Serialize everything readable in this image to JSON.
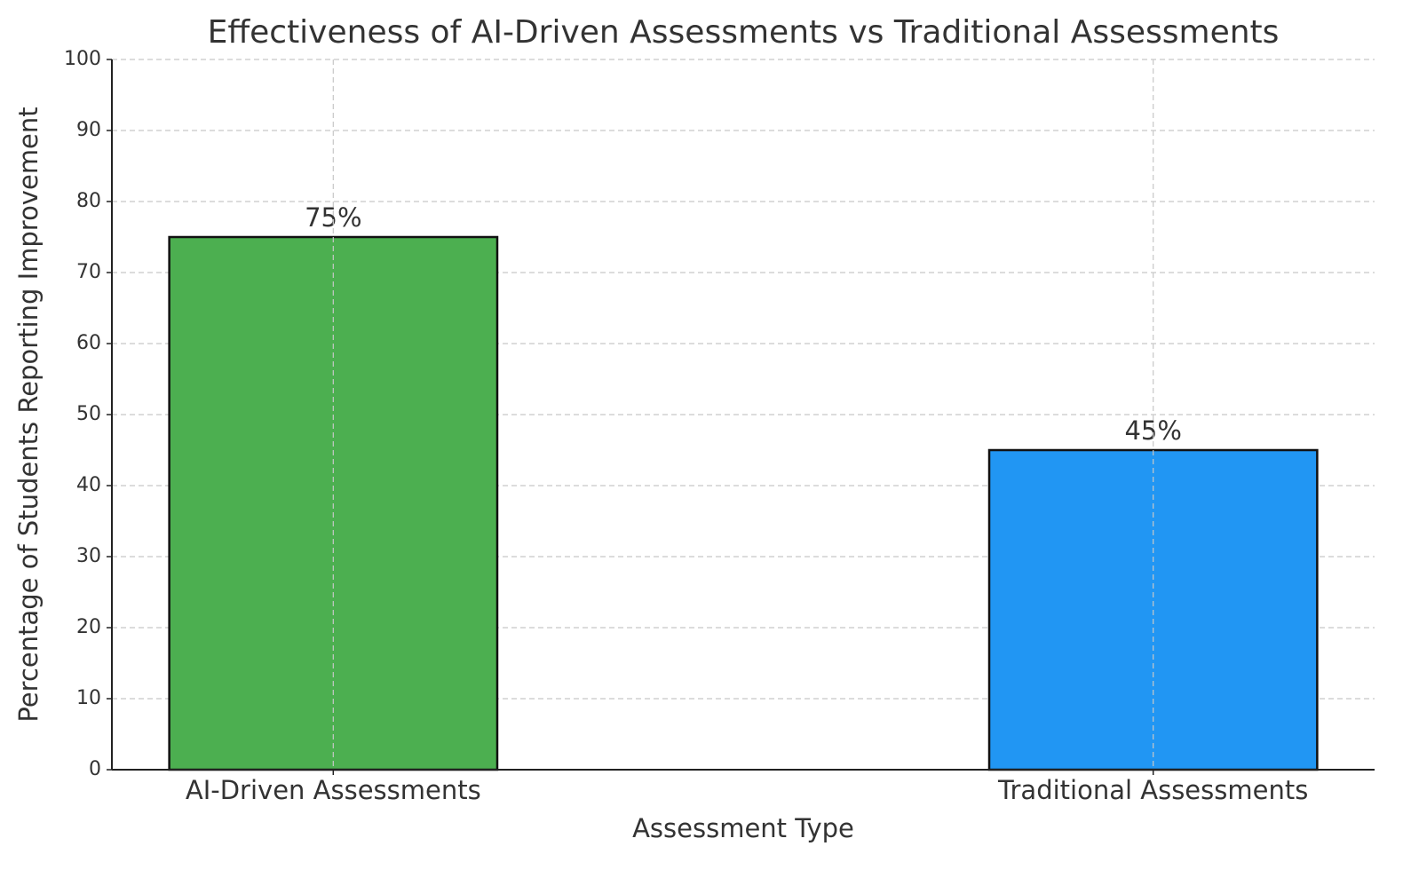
{
  "chart_data": {
    "type": "bar",
    "title": "Effectiveness of AI-Driven Assessments vs Traditional Assessments",
    "x_label": "Assessment Type",
    "y_label": "Percentage of Students Reporting Improvement",
    "categories": [
      "AI-Driven Assessments",
      "Traditional Assessments"
    ],
    "values": [
      75,
      45
    ],
    "value_labels": [
      "75%",
      "45%"
    ],
    "colors": [
      "#4caf50",
      "#2196f3"
    ],
    "ylim": [
      0,
      100
    ],
    "yticks": [
      0,
      10,
      20,
      30,
      40,
      50,
      60,
      70,
      80,
      90,
      100
    ],
    "grid": true
  }
}
